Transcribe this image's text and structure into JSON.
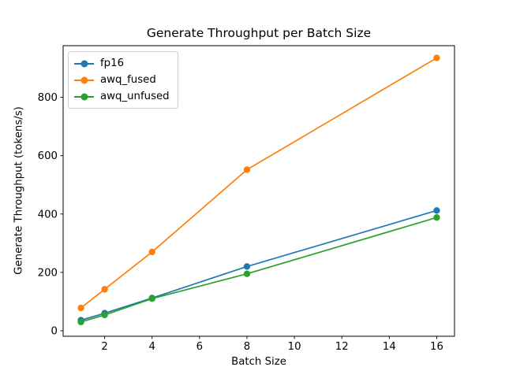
{
  "chart_data": {
    "type": "line",
    "title": "Generate Throughput per Batch Size",
    "xlabel": "Batch Size",
    "ylabel": "Generate Throughput (tokens/s)",
    "x": [
      1,
      2,
      4,
      8,
      16
    ],
    "series": [
      {
        "name": "fp16",
        "color": "#1f77b4",
        "values": [
          36,
          60,
          112,
          220,
          412
        ]
      },
      {
        "name": "awq_fused",
        "color": "#ff7f0e",
        "values": [
          78,
          142,
          270,
          552,
          935
        ]
      },
      {
        "name": "awq_unfused",
        "color": "#2ca02c",
        "values": [
          30,
          54,
          110,
          195,
          388
        ]
      }
    ],
    "xlim": [
      0.25,
      16.75
    ],
    "ylim": [
      -19,
      977
    ],
    "xticks": [
      2,
      4,
      6,
      8,
      10,
      12,
      14,
      16
    ],
    "yticks": [
      0,
      200,
      400,
      600,
      800
    ],
    "grid": false,
    "legend_position": "upper left",
    "marker": "o",
    "background": "#ffffff",
    "axis_color": "#000000"
  }
}
